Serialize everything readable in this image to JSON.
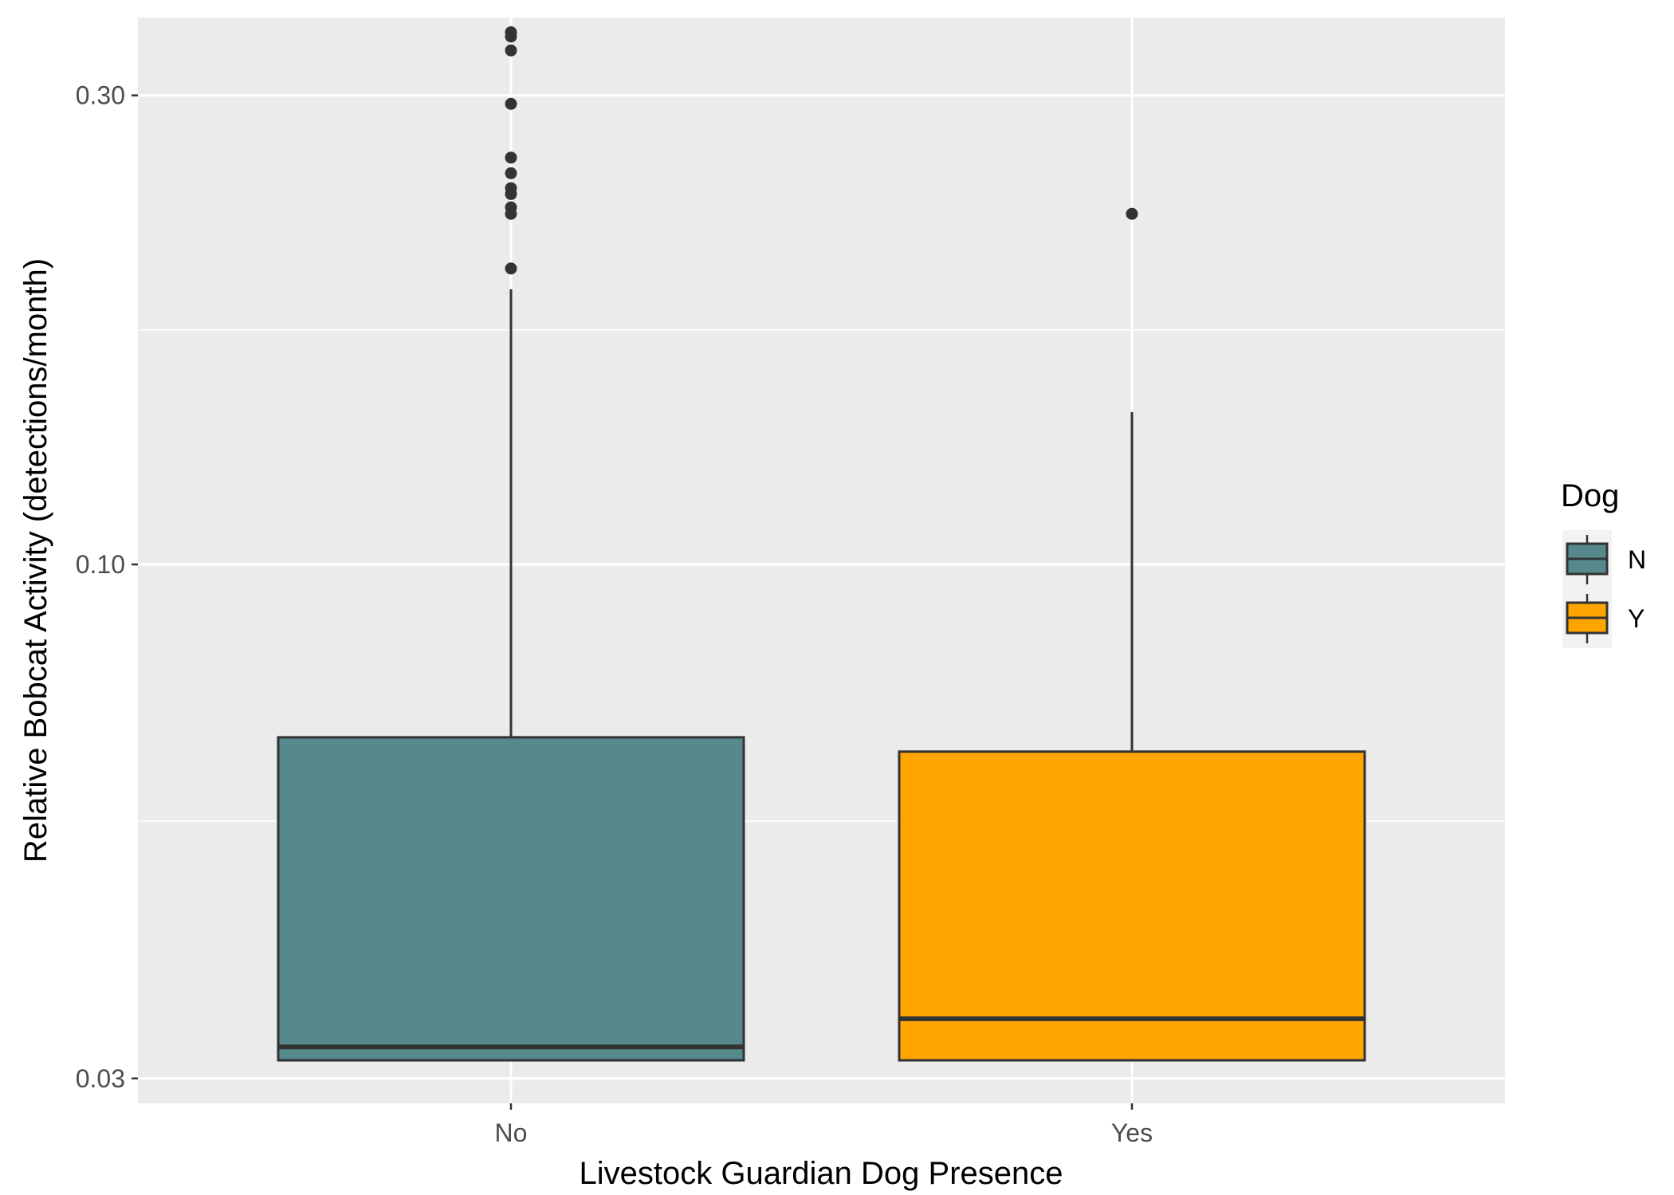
{
  "chart_data": {
    "type": "boxplot",
    "xlabel": "Livestock Guardian Dog Presence",
    "ylabel": "Relative Bobcat Activity (detections/month)",
    "y_scale": "log10",
    "ylim": [
      0.0283,
      0.36
    ],
    "y_ticks": [
      0.03,
      0.1,
      0.3
    ],
    "y_tick_labels": [
      "0.03",
      "0.10",
      "0.30"
    ],
    "y_minor_ticks": [
      0.0548,
      0.1732
    ],
    "categories": [
      "No",
      "Yes"
    ],
    "grid": true,
    "legend": {
      "title": "Dog",
      "position": "right",
      "entries": [
        {
          "label": "N",
          "color": "#55898c"
        },
        {
          "label": "Y",
          "color": "#ffa500"
        }
      ]
    },
    "boxes": [
      {
        "category": "No",
        "group": "N",
        "color": "#55898c",
        "whisker_low": 0.0313,
        "q1": 0.0313,
        "median": 0.0323,
        "q3": 0.0667,
        "whisker_high": 0.1905,
        "outliers": [
          0.2,
          0.2273,
          0.2308,
          0.2381,
          0.2414,
          0.25,
          0.2593,
          0.2941,
          0.3333,
          0.3443,
          0.3478
        ]
      },
      {
        "category": "Yes",
        "group": "Y",
        "color": "#ffa500",
        "whisker_low": 0.0313,
        "q1": 0.0313,
        "median": 0.0345,
        "q3": 0.0645,
        "whisker_high": 0.1429,
        "outliers": [
          0.2273
        ]
      }
    ]
  }
}
